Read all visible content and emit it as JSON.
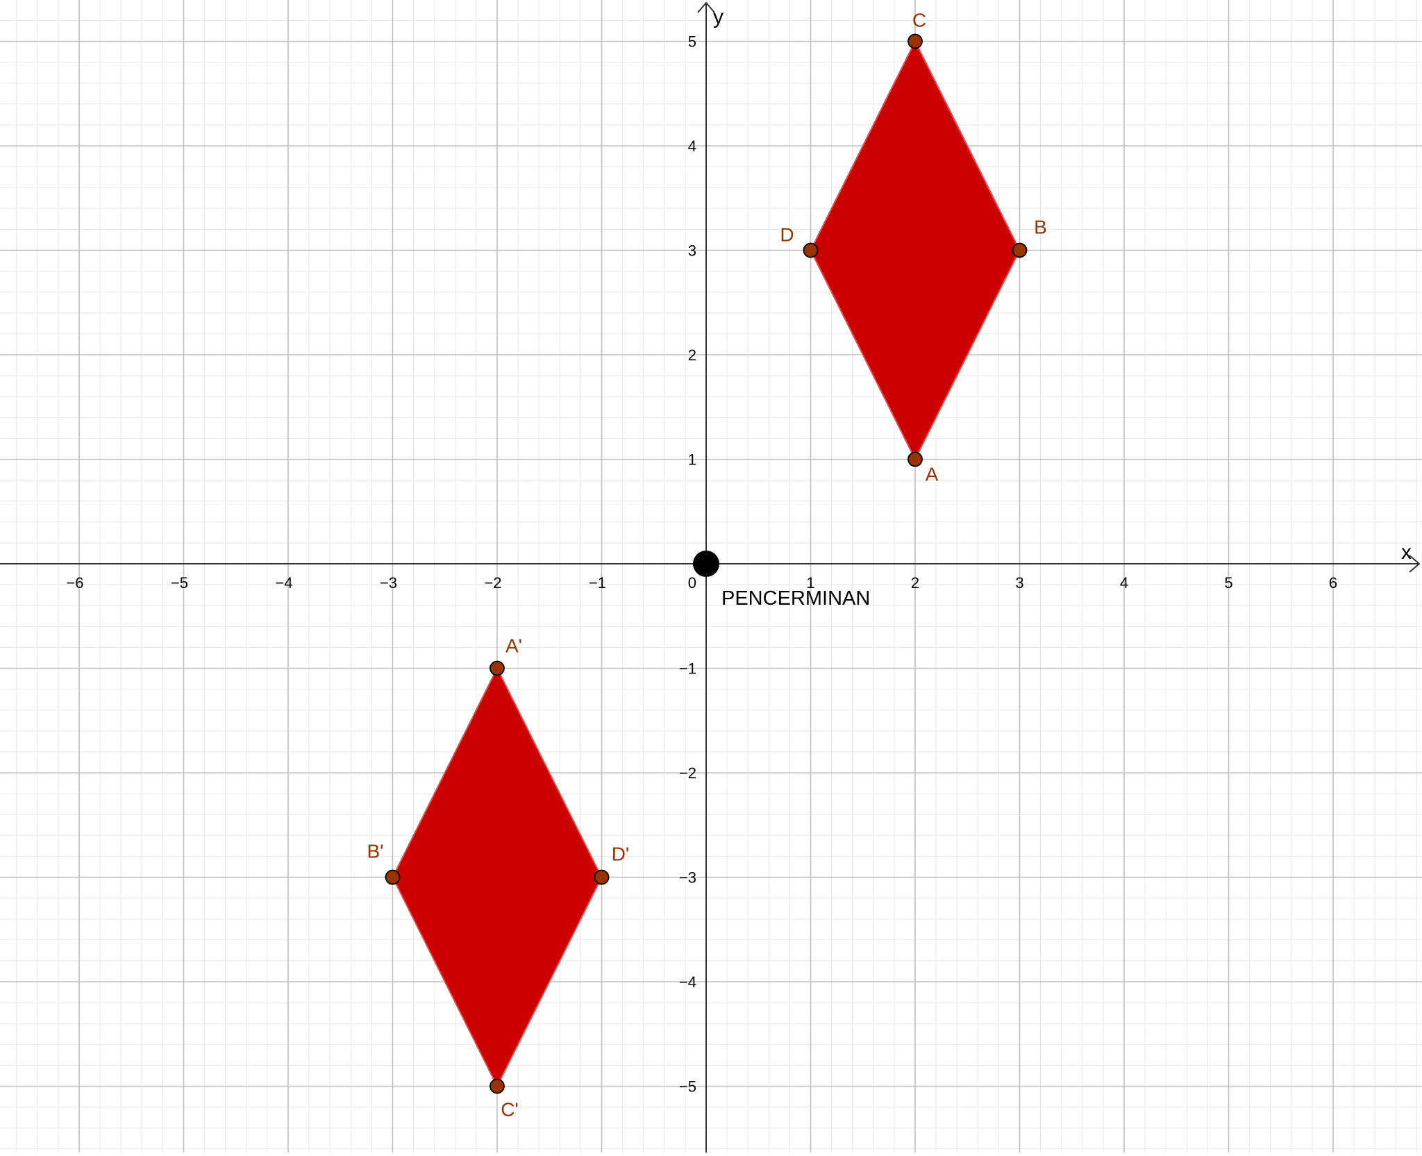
{
  "axes": {
    "x_label": "x",
    "y_label": "y",
    "origin_label": "0",
    "x_ticks": [
      -6,
      -5,
      -4,
      -3,
      -2,
      -1,
      1,
      2,
      3,
      4,
      5,
      6
    ],
    "y_ticks": [
      5,
      4,
      3,
      2,
      1,
      -1,
      -2,
      -3,
      -4,
      -5
    ],
    "x_range": [
      -6.75,
      6.8
    ],
    "y_range": [
      -5.6,
      5.4
    ],
    "minor_grid": true,
    "major_grid": true
  },
  "colors": {
    "polygon_fill": "#cc0000",
    "polygon_stroke": "#e05050",
    "point_fill": "#993300",
    "label_color": "#993300",
    "major_grid": "#c0c0c0",
    "minor_grid": "#e8e8e8",
    "axis": "#333333",
    "origin_point": "#000000"
  },
  "origin_point": {
    "x": 0,
    "y": 0,
    "caption": "PENCERMINAN"
  },
  "shapes": [
    {
      "name": "ABCD",
      "vertices": [
        {
          "label": "A",
          "x": 2,
          "y": 1
        },
        {
          "label": "B",
          "x": 3,
          "y": 3
        },
        {
          "label": "C",
          "x": 2,
          "y": 5
        },
        {
          "label": "D",
          "x": 1,
          "y": 3
        }
      ]
    },
    {
      "name": "A'B'C'D'",
      "vertices": [
        {
          "label": "A'",
          "x": -2,
          "y": -1
        },
        {
          "label": "B'",
          "x": -3,
          "y": -3
        },
        {
          "label": "C'",
          "x": -2,
          "y": -5
        },
        {
          "label": "D'",
          "x": -1,
          "y": -3
        }
      ]
    }
  ]
}
